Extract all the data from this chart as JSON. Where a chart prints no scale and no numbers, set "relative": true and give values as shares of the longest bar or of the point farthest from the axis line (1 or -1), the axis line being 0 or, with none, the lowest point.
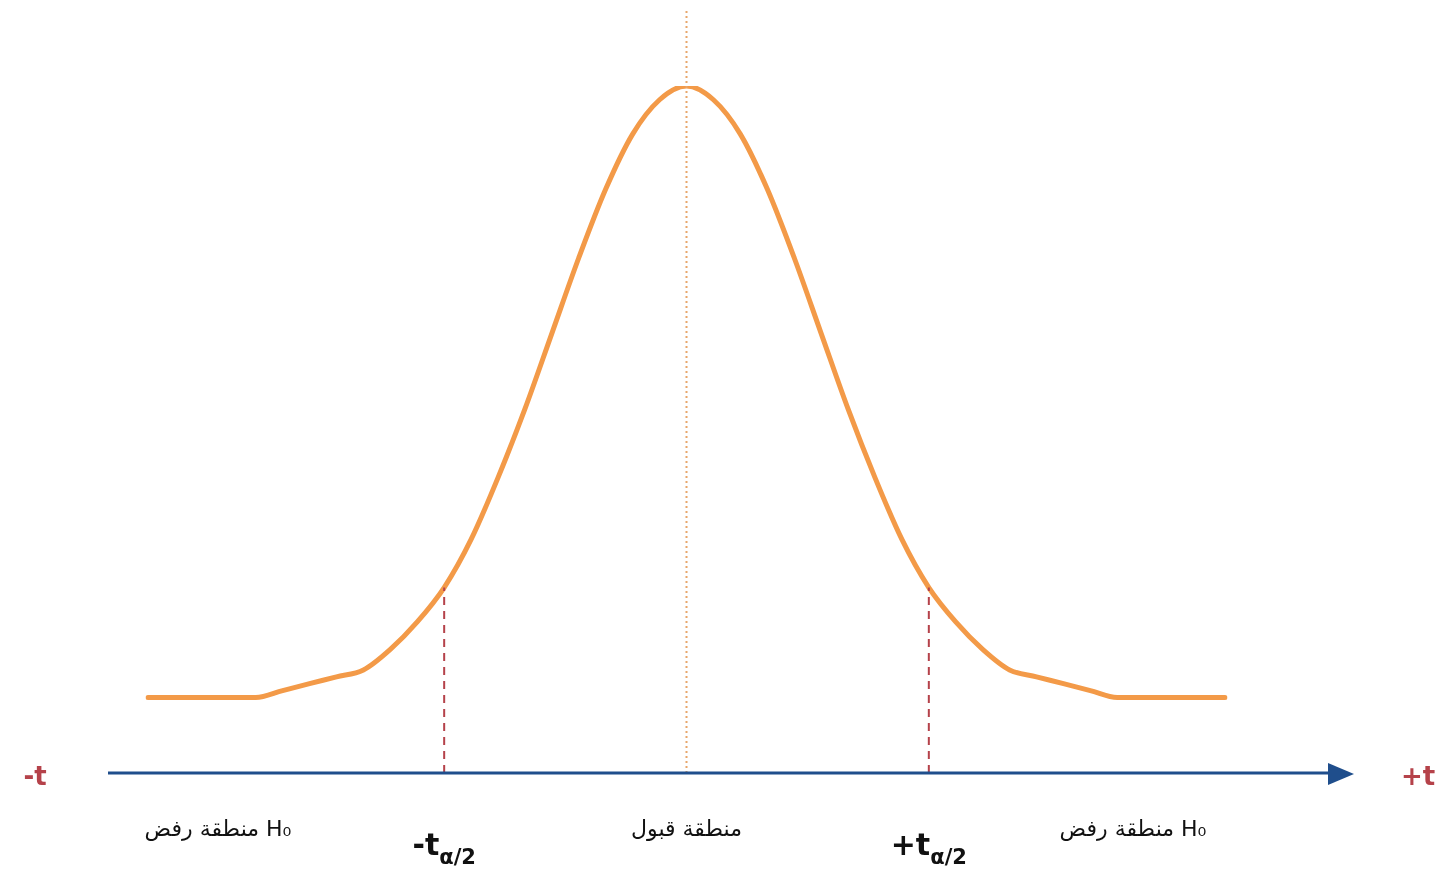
{
  "chart_data": {
    "type": "line",
    "relative": true,
    "grid": false,
    "legend": false,
    "marker": "none",
    "line_style": "solid",
    "categories": [
      null,
      null,
      null,
      null,
      null,
      null,
      null,
      null,
      null,
      null,
      null,
      "-t$_{α/2}$",
      null,
      null,
      null,
      null,
      null,
      null,
      null,
      null,
      "منطقة قبول",
      null,
      null,
      null,
      null,
      null,
      null,
      null,
      null,
      "+t$_{α/2}$",
      null,
      null,
      null,
      null,
      null,
      null,
      null,
      null,
      null,
      null,
      null
    ],
    "series": [
      {
        "color": "#f39a48",
        "values": [
          0.11,
          0.11,
          0.11,
          0.11,
          0.11,
          0.12,
          0.13,
          0.14,
          0.15,
          0.18,
          0.22,
          0.27,
          0.34,
          0.43,
          0.53,
          0.64,
          0.75,
          0.85,
          0.93,
          0.98,
          1.0,
          0.98,
          0.93,
          0.85,
          0.75,
          0.64,
          0.53,
          0.43,
          0.34,
          0.27,
          0.22,
          0.18,
          0.15,
          0.14,
          0.13,
          0.12,
          0.11,
          0.11,
          0.11,
          0.11,
          0.11
        ]
      }
    ],
    "ref_lines": [
      {
        "axis": "x",
        "value": "-t$_{α/2}$",
        "label": null,
        "color": "#b5424a",
        "line_style": "dashed"
      },
      {
        "axis": "x",
        "value": "منطقة قبول",
        "label": null,
        "color": "#e8a66a",
        "line_style": "dotted"
      },
      {
        "axis": "x",
        "value": "+t$_{α/2}$",
        "label": null,
        "color": "#b5424a",
        "line_style": "dashed"
      }
    ],
    "annotations": [
      "-t",
      "+t",
      "منطقة رفض H₀",
      "منطقة رفض H₀"
    ]
  }
}
